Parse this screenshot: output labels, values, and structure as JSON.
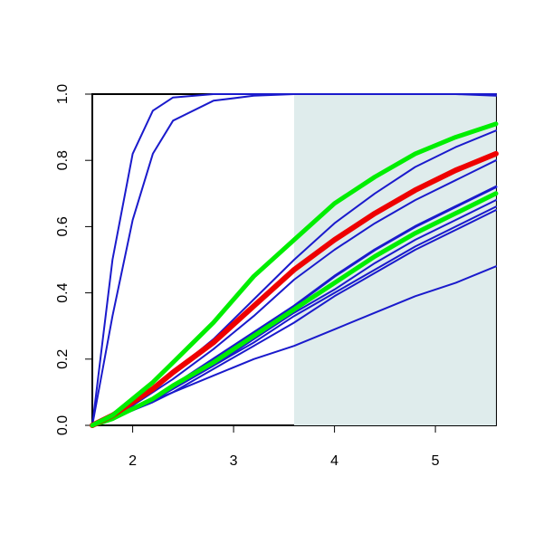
{
  "chart_data": {
    "type": "line",
    "x": [
      1.6,
      1.8,
      2.0,
      2.2,
      2.4,
      2.8,
      3.2,
      3.6,
      4.0,
      4.4,
      4.8,
      5.2,
      5.6
    ],
    "series": [
      {
        "color": "#1a1acc",
        "line_width": 2,
        "values": [
          0,
          0.5,
          0.82,
          0.95,
          0.99,
          1,
          1,
          1,
          1,
          1,
          1,
          1,
          1
        ]
      },
      {
        "color": "#1a1acc",
        "line_width": 2,
        "values": [
          0,
          0.33,
          0.62,
          0.82,
          0.92,
          0.98,
          0.995,
          1,
          1,
          1,
          1,
          1,
          0.995
        ]
      },
      {
        "color": "#1a1acc",
        "line_width": 2,
        "values": [
          0,
          0.025,
          0.05,
          0.075,
          0.1,
          0.15,
          0.2,
          0.24,
          0.29,
          0.34,
          0.39,
          0.43,
          0.48
        ]
      },
      {
        "color": "#1a1acc",
        "line_width": 2,
        "values": [
          0,
          0.02,
          0.045,
          0.07,
          0.1,
          0.17,
          0.24,
          0.31,
          0.39,
          0.46,
          0.53,
          0.59,
          0.65
        ]
      },
      {
        "color": "#1a1acc",
        "line_width": 2,
        "values": [
          0,
          0.02,
          0.045,
          0.075,
          0.11,
          0.18,
          0.25,
          0.33,
          0.4,
          0.47,
          0.54,
          0.6,
          0.66
        ]
      },
      {
        "color": "#1a1acc",
        "line_width": 2,
        "values": [
          0,
          0.02,
          0.05,
          0.08,
          0.11,
          0.18,
          0.26,
          0.34,
          0.41,
          0.49,
          0.56,
          0.62,
          0.68
        ]
      },
      {
        "color": "#1a1acc",
        "line_width": 3,
        "values": [
          0,
          0.02,
          0.05,
          0.08,
          0.12,
          0.2,
          0.28,
          0.36,
          0.45,
          0.53,
          0.6,
          0.66,
          0.72
        ]
      },
      {
        "color": "#00ee00",
        "line_width": 5,
        "values": [
          0,
          0.02,
          0.05,
          0.08,
          0.12,
          0.19,
          0.27,
          0.35,
          0.43,
          0.51,
          0.58,
          0.64,
          0.7
        ]
      },
      {
        "color": "#1a1acc",
        "line_width": 2,
        "values": [
          0,
          0.03,
          0.06,
          0.1,
          0.14,
          0.23,
          0.33,
          0.44,
          0.53,
          0.61,
          0.68,
          0.74,
          0.8
        ]
      },
      {
        "color": "#1a1acc",
        "line_width": 2,
        "values": [
          0,
          0.03,
          0.07,
          0.11,
          0.16,
          0.26,
          0.38,
          0.5,
          0.61,
          0.7,
          0.78,
          0.84,
          0.89
        ]
      },
      {
        "color": "#ee0000",
        "line_width": 6,
        "values": [
          0,
          0.03,
          0.07,
          0.11,
          0.16,
          0.25,
          0.36,
          0.47,
          0.56,
          0.64,
          0.71,
          0.77,
          0.82
        ]
      },
      {
        "color": "#00ee00",
        "line_width": 5,
        "values": [
          0,
          0.03,
          0.08,
          0.13,
          0.19,
          0.31,
          0.45,
          0.56,
          0.67,
          0.75,
          0.82,
          0.87,
          0.91
        ]
      }
    ],
    "shaded_region": {
      "xlim": [
        3.6,
        5.6
      ],
      "color": "#dfecec"
    },
    "xlim": [
      1.6,
      5.6
    ],
    "ylim": [
      0,
      1
    ],
    "xticks": [
      2,
      3,
      4,
      5
    ],
    "yticks": [
      {
        "value": 0,
        "label": "0.0"
      },
      0.2,
      0.4,
      0.6,
      0.8,
      {
        "value": 1,
        "label": "1.0"
      }
    ]
  }
}
